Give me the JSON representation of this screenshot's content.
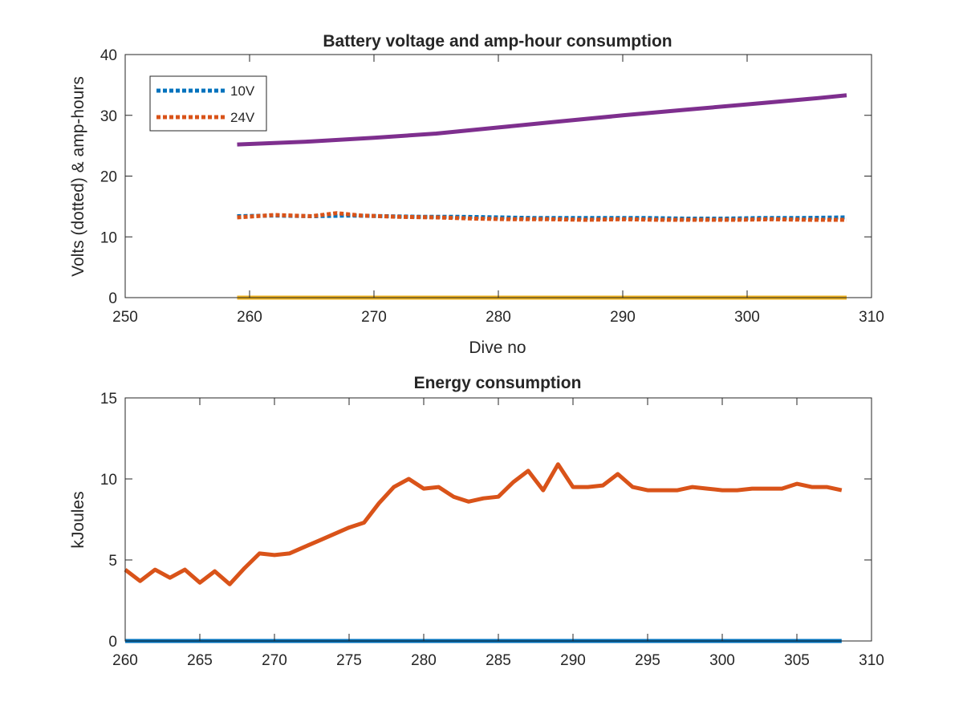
{
  "chart_data": [
    {
      "type": "line",
      "title": "Battery voltage and amp-hour consumption",
      "xlabel": "Dive no",
      "ylabel": "Volts (dotted) & amp-hours",
      "xlim": [
        250,
        310
      ],
      "ylim": [
        0,
        40
      ],
      "xticks": [
        250,
        260,
        270,
        280,
        290,
        300,
        310
      ],
      "yticks": [
        0,
        10,
        20,
        30,
        40
      ],
      "grid": false,
      "legend": {
        "placement": "top-left",
        "entries": [
          "10V",
          "24V"
        ]
      },
      "series": [
        {
          "name": "10V",
          "style": "dotted",
          "color": "#0072BD",
          "x": [
            259,
            262,
            265,
            268,
            271,
            274,
            277,
            280,
            283,
            286,
            289,
            292,
            295,
            298,
            301,
            304,
            308
          ],
          "y": [
            13.4,
            13.5,
            13.4,
            13.5,
            13.4,
            13.3,
            13.3,
            13.2,
            13.1,
            13.1,
            13.1,
            13.1,
            13.0,
            13.0,
            13.1,
            13.1,
            13.2
          ]
        },
        {
          "name": "24V",
          "style": "dotted",
          "color": "#D95319",
          "x": [
            259,
            262,
            265,
            267,
            269,
            272,
            275,
            278,
            281,
            284,
            287,
            290,
            293,
            296,
            299,
            302,
            305,
            308
          ],
          "y": [
            13.2,
            13.6,
            13.4,
            13.9,
            13.5,
            13.3,
            13.2,
            13.0,
            12.9,
            12.9,
            12.8,
            12.9,
            12.8,
            12.8,
            12.8,
            12.9,
            12.8,
            12.8
          ]
        },
        {
          "style": "solid",
          "color": "#7E2F8E",
          "x": [
            259,
            265,
            270,
            275,
            280,
            285,
            290,
            295,
            300,
            305,
            308
          ],
          "y": [
            25.2,
            25.7,
            26.3,
            27.0,
            28.0,
            29.0,
            30.0,
            30.9,
            31.8,
            32.7,
            33.3
          ]
        },
        {
          "style": "solid",
          "color": "#EDB120",
          "x": [
            259,
            308
          ],
          "y": [
            0,
            0
          ]
        }
      ]
    },
    {
      "type": "line",
      "title": "Energy consumption",
      "xlabel": "",
      "ylabel": "kJoules",
      "xlim": [
        260,
        310
      ],
      "ylim": [
        0,
        15
      ],
      "xticks": [
        260,
        265,
        270,
        275,
        280,
        285,
        290,
        295,
        300,
        305,
        310
      ],
      "yticks": [
        0,
        5,
        10,
        15
      ],
      "grid": false,
      "series": [
        {
          "style": "solid",
          "color": "#D95319",
          "x": [
            260,
            261,
            262,
            263,
            264,
            265,
            266,
            267,
            268,
            269,
            270,
            271,
            272,
            273,
            274,
            275,
            276,
            277,
            278,
            279,
            280,
            281,
            282,
            283,
            284,
            285,
            286,
            287,
            288,
            289,
            290,
            291,
            292,
            293,
            294,
            295,
            296,
            297,
            298,
            299,
            300,
            301,
            302,
            303,
            304,
            305,
            306,
            307,
            308
          ],
          "y": [
            4.4,
            3.7,
            4.4,
            3.9,
            4.4,
            3.6,
            4.3,
            3.5,
            4.5,
            5.4,
            5.3,
            5.4,
            5.8,
            6.2,
            6.6,
            7.0,
            7.3,
            8.5,
            9.5,
            10.0,
            9.4,
            9.5,
            8.9,
            8.6,
            8.8,
            8.9,
            9.8,
            10.5,
            9.3,
            10.9,
            9.5,
            9.5,
            9.6,
            10.3,
            9.5,
            9.3,
            9.3,
            9.3,
            9.5,
            9.4,
            9.3,
            9.3,
            9.4,
            9.4,
            9.4,
            9.7,
            9.5,
            9.5,
            9.3
          ]
        },
        {
          "style": "solid",
          "color": "#0072BD",
          "x": [
            260,
            308
          ],
          "y": [
            0,
            0
          ]
        }
      ]
    }
  ]
}
